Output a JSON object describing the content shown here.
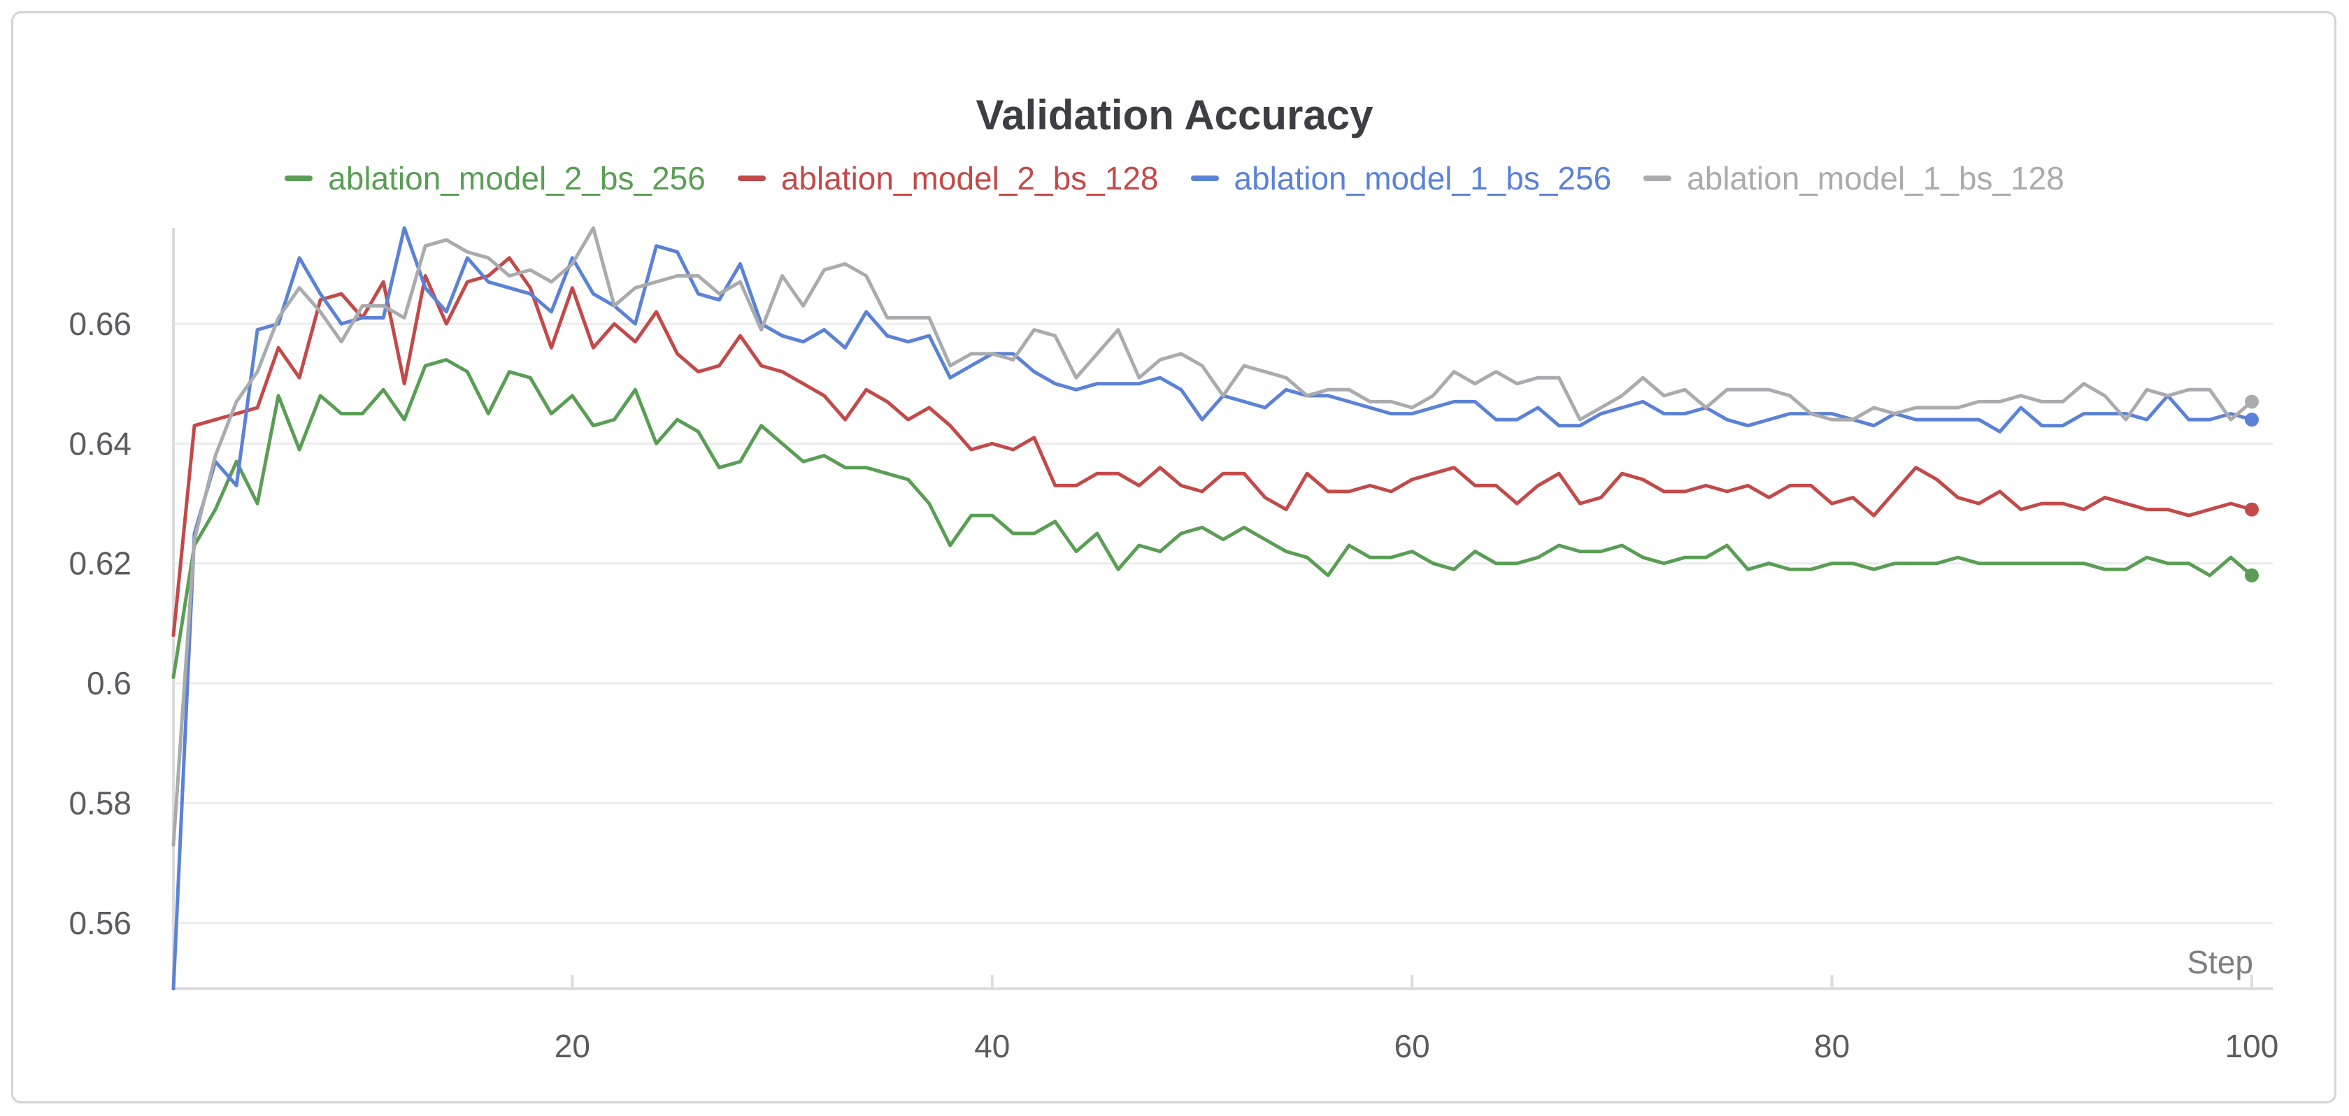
{
  "chart_data": {
    "type": "line",
    "title": "Validation Accuracy",
    "xlabel": "Step",
    "ylabel": "",
    "xlim": [
      1,
      101
    ],
    "ylim": [
      0.549,
      0.676
    ],
    "xticks": [
      20,
      40,
      60,
      80,
      100
    ],
    "yticks": [
      0.56,
      0.58,
      0.6,
      0.62,
      0.64,
      0.66
    ],
    "ytick_labels": [
      "0.56",
      "0.58",
      "0.6",
      "0.62",
      "0.64",
      "0.66"
    ],
    "xtick_labels": [
      "20",
      "40",
      "60",
      "80",
      "100"
    ],
    "grid": true,
    "legend_position": "top-center",
    "series": [
      {
        "name": "ablation_model_2_bs_256",
        "color": "#5a9e55",
        "values": [
          0.601,
          0.623,
          0.629,
          0.637,
          0.63,
          0.648,
          0.639,
          0.648,
          0.645,
          0.645,
          0.649,
          0.644,
          0.653,
          0.654,
          0.652,
          0.645,
          0.652,
          0.651,
          0.645,
          0.648,
          0.643,
          0.644,
          0.649,
          0.64,
          0.644,
          0.642,
          0.636,
          0.637,
          0.643,
          0.64,
          0.637,
          0.638,
          0.636,
          0.636,
          0.635,
          0.634,
          0.63,
          0.623,
          0.628,
          0.628,
          0.625,
          0.625,
          0.627,
          0.622,
          0.625,
          0.619,
          0.623,
          0.622,
          0.625,
          0.626,
          0.624,
          0.626,
          0.624,
          0.622,
          0.621,
          0.618,
          0.623,
          0.621,
          0.621,
          0.622,
          0.62,
          0.619,
          0.622,
          0.62,
          0.62,
          0.621,
          0.623,
          0.622,
          0.622,
          0.623,
          0.621,
          0.62,
          0.621,
          0.621,
          0.623,
          0.619,
          0.62,
          0.619,
          0.619,
          0.62,
          0.62,
          0.619,
          0.62,
          0.62,
          0.62,
          0.621,
          0.62,
          0.62,
          0.62,
          0.62,
          0.62,
          0.62,
          0.619,
          0.619,
          0.621,
          0.62,
          0.62,
          0.618,
          0.621,
          0.618
        ]
      },
      {
        "name": "ablation_model_2_bs_128",
        "color": "#c24a49",
        "values": [
          0.608,
          0.643,
          0.644,
          0.645,
          0.646,
          0.656,
          0.651,
          0.664,
          0.665,
          0.661,
          0.667,
          0.65,
          0.668,
          0.66,
          0.667,
          0.668,
          0.671,
          0.666,
          0.656,
          0.666,
          0.656,
          0.66,
          0.657,
          0.662,
          0.655,
          0.652,
          0.653,
          0.658,
          0.653,
          0.652,
          0.65,
          0.648,
          0.644,
          0.649,
          0.647,
          0.644,
          0.646,
          0.643,
          0.639,
          0.64,
          0.639,
          0.641,
          0.633,
          0.633,
          0.635,
          0.635,
          0.633,
          0.636,
          0.633,
          0.632,
          0.635,
          0.635,
          0.631,
          0.629,
          0.635,
          0.632,
          0.632,
          0.633,
          0.632,
          0.634,
          0.635,
          0.636,
          0.633,
          0.633,
          0.63,
          0.633,
          0.635,
          0.63,
          0.631,
          0.635,
          0.634,
          0.632,
          0.632,
          0.633,
          0.632,
          0.633,
          0.631,
          0.633,
          0.633,
          0.63,
          0.631,
          0.628,
          0.632,
          0.636,
          0.634,
          0.631,
          0.63,
          0.632,
          0.629,
          0.63,
          0.63,
          0.629,
          0.631,
          0.63,
          0.629,
          0.629,
          0.628,
          0.629,
          0.63,
          0.629
        ]
      },
      {
        "name": "ablation_model_1_bs_256",
        "color": "#5b82d6",
        "values": [
          0.549,
          0.625,
          0.637,
          0.633,
          0.659,
          0.66,
          0.671,
          0.665,
          0.66,
          0.661,
          0.661,
          0.676,
          0.666,
          0.662,
          0.671,
          0.667,
          0.666,
          0.665,
          0.662,
          0.671,
          0.665,
          0.663,
          0.66,
          0.673,
          0.672,
          0.665,
          0.664,
          0.67,
          0.66,
          0.658,
          0.657,
          0.659,
          0.656,
          0.662,
          0.658,
          0.657,
          0.658,
          0.651,
          0.653,
          0.655,
          0.655,
          0.652,
          0.65,
          0.649,
          0.65,
          0.65,
          0.65,
          0.651,
          0.649,
          0.644,
          0.648,
          0.647,
          0.646,
          0.649,
          0.648,
          0.648,
          0.647,
          0.646,
          0.645,
          0.645,
          0.646,
          0.647,
          0.647,
          0.644,
          0.644,
          0.646,
          0.643,
          0.643,
          0.645,
          0.646,
          0.647,
          0.645,
          0.645,
          0.646,
          0.644,
          0.643,
          0.644,
          0.645,
          0.645,
          0.645,
          0.644,
          0.643,
          0.645,
          0.644,
          0.644,
          0.644,
          0.644,
          0.642,
          0.646,
          0.643,
          0.643,
          0.645,
          0.645,
          0.645,
          0.644,
          0.648,
          0.644,
          0.644,
          0.645,
          0.644
        ]
      },
      {
        "name": "ablation_model_1_bs_128",
        "color": "#a9abaf",
        "values": [
          0.573,
          0.624,
          0.638,
          0.647,
          0.652,
          0.661,
          0.666,
          0.662,
          0.657,
          0.663,
          0.663,
          0.661,
          0.673,
          0.674,
          0.672,
          0.671,
          0.668,
          0.669,
          0.667,
          0.67,
          0.676,
          0.663,
          0.666,
          0.667,
          0.668,
          0.668,
          0.665,
          0.667,
          0.659,
          0.668,
          0.663,
          0.669,
          0.67,
          0.668,
          0.661,
          0.661,
          0.661,
          0.653,
          0.655,
          0.655,
          0.654,
          0.659,
          0.658,
          0.651,
          0.655,
          0.659,
          0.651,
          0.654,
          0.655,
          0.653,
          0.648,
          0.653,
          0.652,
          0.651,
          0.648,
          0.649,
          0.649,
          0.647,
          0.647,
          0.646,
          0.648,
          0.652,
          0.65,
          0.652,
          0.65,
          0.651,
          0.651,
          0.644,
          0.646,
          0.648,
          0.651,
          0.648,
          0.649,
          0.646,
          0.649,
          0.649,
          0.649,
          0.648,
          0.645,
          0.644,
          0.644,
          0.646,
          0.645,
          0.646,
          0.646,
          0.646,
          0.647,
          0.647,
          0.648,
          0.647,
          0.647,
          0.65,
          0.648,
          0.644,
          0.649,
          0.648,
          0.649,
          0.649,
          0.644,
          0.647
        ]
      }
    ]
  }
}
